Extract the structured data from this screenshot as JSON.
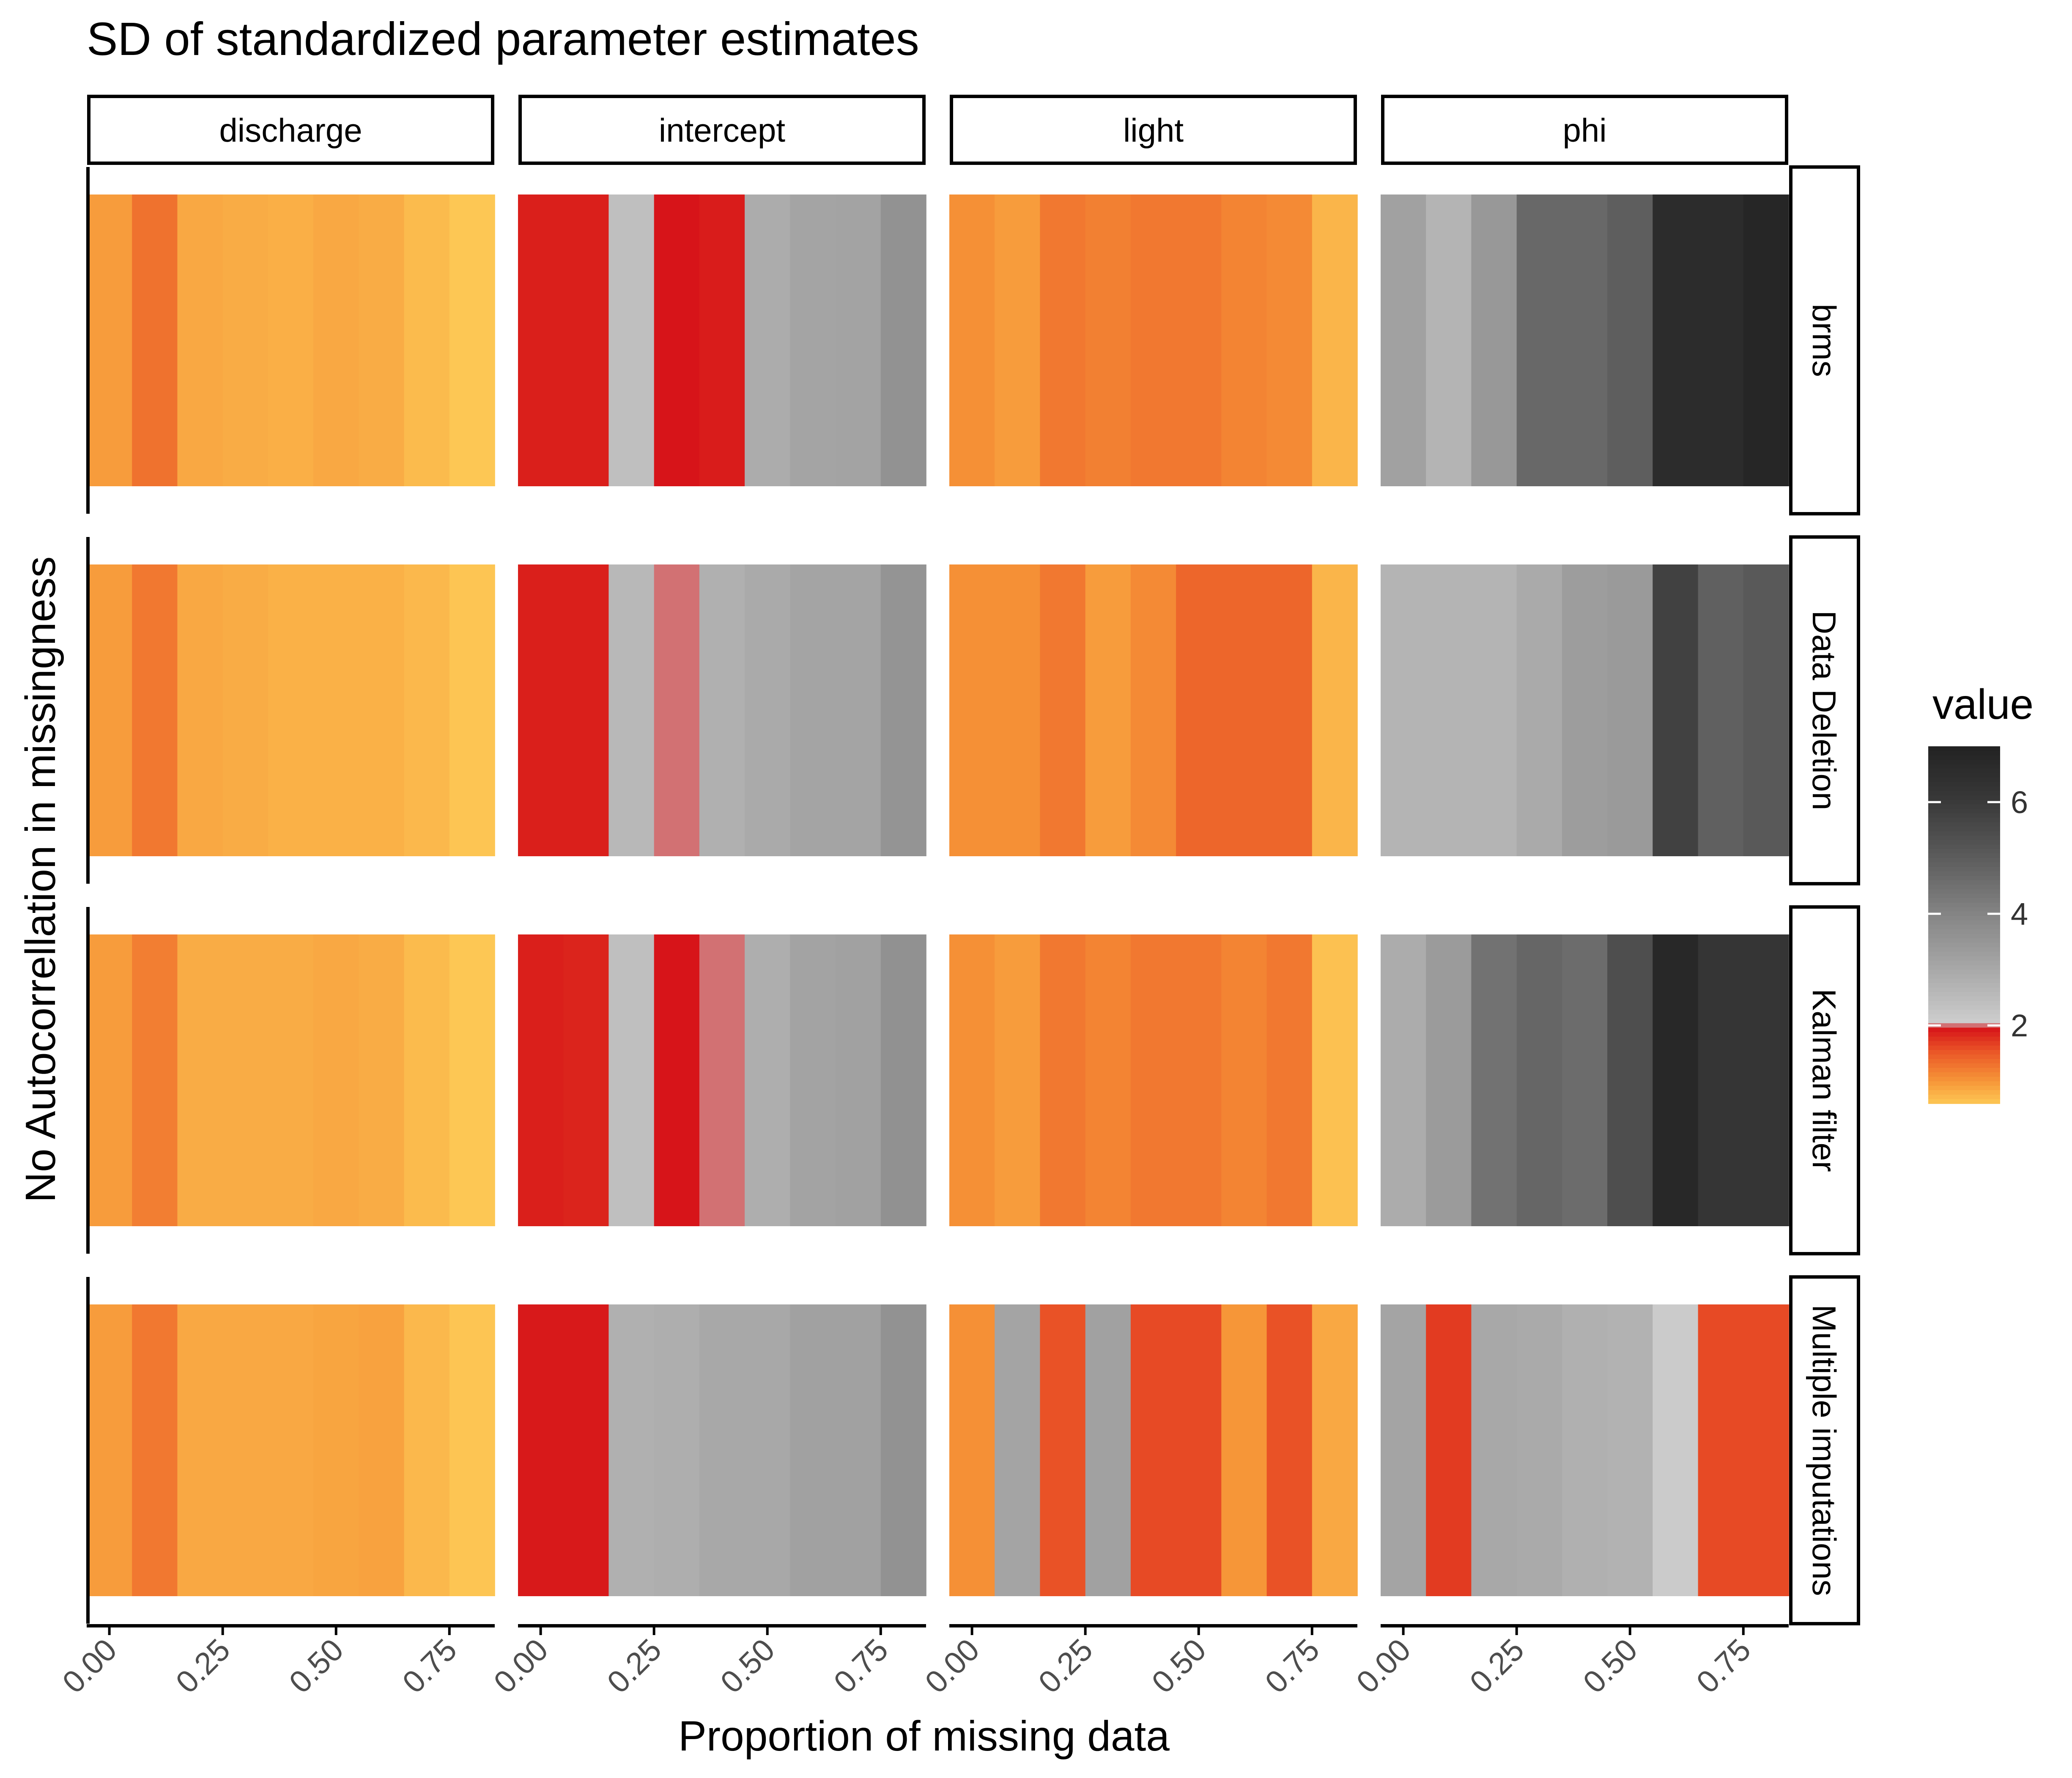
{
  "chart_data": {
    "type": "heatmap",
    "title": "SD of standardized parameter estimates",
    "xlabel": "Proportion of missing data",
    "ylabel": "No Autocorrellation in missingness",
    "x": [
      0.0,
      0.1,
      0.2,
      0.3,
      0.4,
      0.5,
      0.6,
      0.7,
      0.8
    ],
    "x_ticks": [
      0.0,
      0.25,
      0.5,
      0.75
    ],
    "x_tick_labels": [
      "0.00",
      "0.25",
      "0.50",
      "0.75"
    ],
    "xlim": [
      -0.05,
      0.85
    ],
    "columns": [
      "discharge",
      "intercept",
      "light",
      "phi"
    ],
    "rows": [
      "brms",
      "Data Deletion",
      "Kalman filter",
      "Multiple imputations"
    ],
    "legend": {
      "title": "value",
      "position": "right",
      "range": [
        0.6,
        7.0
      ],
      "ticks": [
        2,
        4,
        6
      ],
      "tick_labels": [
        "2",
        "4",
        "6"
      ]
    },
    "series": [
      {
        "row": "brms",
        "column": "discharge",
        "values": [
          0.95,
          1.3,
          0.85,
          0.82,
          0.8,
          0.85,
          0.82,
          0.7,
          0.6
        ]
      },
      {
        "row": "brms",
        "column": "intercept",
        "values": [
          1.88,
          1.88,
          2.4,
          1.95,
          1.9,
          2.9,
          3.1,
          3.15,
          3.6
        ]
      },
      {
        "row": "brms",
        "column": "light",
        "values": [
          1.05,
          0.95,
          1.25,
          1.18,
          1.25,
          1.25,
          1.15,
          1.1,
          0.75
        ]
      },
      {
        "row": "brms",
        "column": "phi",
        "values": [
          3.2,
          2.7,
          3.45,
          4.7,
          4.7,
          4.95,
          6.6,
          6.6,
          6.85
        ]
      },
      {
        "row": "Data Deletion",
        "column": "discharge",
        "values": [
          0.95,
          1.25,
          0.85,
          0.82,
          0.78,
          0.78,
          0.78,
          0.72,
          0.62
        ]
      },
      {
        "row": "Data Deletion",
        "column": "intercept",
        "values": [
          1.88,
          1.88,
          2.6,
          2.0,
          2.8,
          2.95,
          3.1,
          3.1,
          3.55
        ]
      },
      {
        "row": "Data Deletion",
        "column": "light",
        "values": [
          1.05,
          1.05,
          1.25,
          0.95,
          1.1,
          1.4,
          1.4,
          1.4,
          0.75
        ]
      },
      {
        "row": "Data Deletion",
        "column": "phi",
        "values": [
          2.7,
          2.7,
          2.7,
          2.95,
          3.3,
          3.4,
          5.8,
          4.9,
          5.1
        ]
      },
      {
        "row": "Kalman filter",
        "column": "discharge",
        "values": [
          0.95,
          1.2,
          0.82,
          0.82,
          0.82,
          0.85,
          0.82,
          0.7,
          0.58
        ]
      },
      {
        "row": "Kalman filter",
        "column": "intercept",
        "values": [
          1.88,
          1.85,
          2.4,
          1.95,
          2.0,
          2.85,
          3.15,
          3.2,
          3.65
        ]
      },
      {
        "row": "Kalman filter",
        "column": "light",
        "values": [
          1.05,
          0.95,
          1.25,
          1.15,
          1.25,
          1.25,
          1.15,
          1.25,
          0.65
        ]
      },
      {
        "row": "Kalman filter",
        "column": "phi",
        "values": [
          2.9,
          3.35,
          4.45,
          4.75,
          4.6,
          5.4,
          6.75,
          6.2,
          6.2
        ]
      },
      {
        "row": "Multiple imputations",
        "column": "discharge",
        "values": [
          0.95,
          1.25,
          0.85,
          0.85,
          0.85,
          0.88,
          0.9,
          0.72,
          0.62
        ]
      },
      {
        "row": "Multiple imputations",
        "column": "intercept",
        "values": [
          1.92,
          1.92,
          2.8,
          2.85,
          3.0,
          3.0,
          3.2,
          3.2,
          3.6
        ]
      },
      {
        "row": "Multiple imputations",
        "column": "light",
        "values": [
          1.05,
          3.1,
          1.55,
          3.2,
          1.6,
          1.6,
          1.0,
          1.55,
          0.85
        ]
      },
      {
        "row": "Multiple imputations",
        "column": "phi",
        "values": [
          3.1,
          1.7,
          3.0,
          2.95,
          2.8,
          2.75,
          2.1,
          1.6,
          1.6
        ]
      }
    ]
  }
}
